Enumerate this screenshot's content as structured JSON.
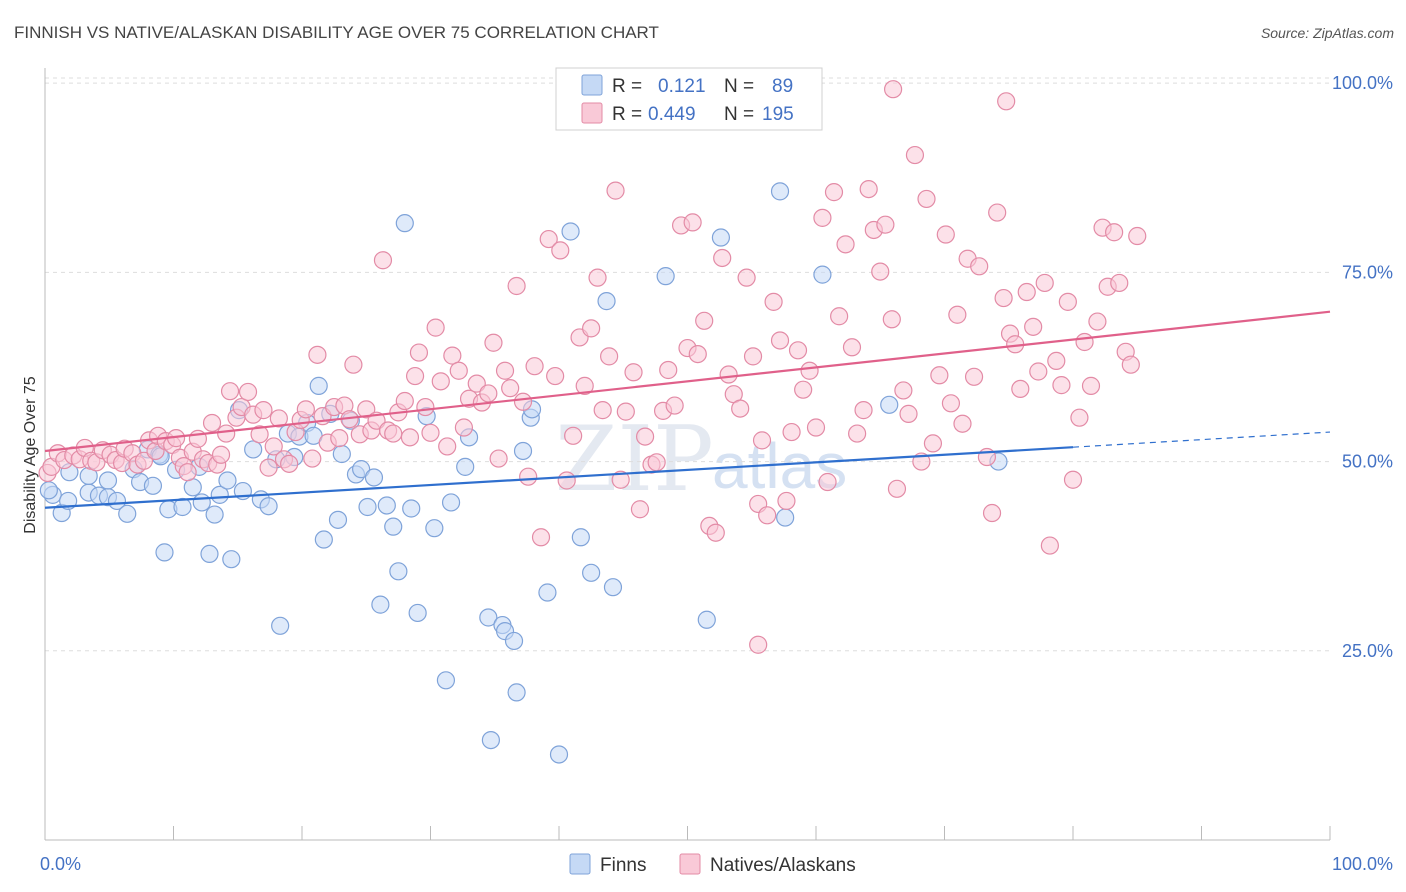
{
  "title": "FINNISH VS NATIVE/ALASKAN DISABILITY AGE OVER 75 CORRELATION CHART",
  "source": "Source: ZipAtlas.com",
  "watermark": {
    "zip": "ZIP",
    "atlas": "atlas"
  },
  "legend": {
    "r_label": "R =",
    "n_label": "N =",
    "rows": [
      {
        "r": "0.121",
        "n": "89",
        "fill": "#c5d9f5",
        "stroke": "#7fa3d9"
      },
      {
        "r": "0.449",
        "n": "195",
        "fill": "#f9c9d7",
        "stroke": "#e38ba6"
      }
    ]
  },
  "bottom_legend": [
    {
      "label": "Finns",
      "fill": "#c5d9f5",
      "stroke": "#7fa3d9"
    },
    {
      "label": "Natives/Alaskans",
      "fill": "#f9c9d7",
      "stroke": "#e38ba6"
    }
  ],
  "chart_data": {
    "type": "scatter",
    "title": "FINNISH VS NATIVE/ALASKAN DISABILITY AGE OVER 75 CORRELATION CHART",
    "xlabel": "",
    "ylabel": "Disability Age Over 75",
    "xlim": [
      0,
      100
    ],
    "ylim": [
      0,
      102
    ],
    "x_tick_labels": [
      "0.0%",
      "100.0%"
    ],
    "y_ticks": [
      25,
      50,
      75,
      100
    ],
    "y_tick_labels": [
      "25.0%",
      "50.0%",
      "75.0%",
      "100.0%"
    ],
    "grid": true,
    "series": [
      {
        "name": "Finns",
        "color": "#7fa3d9",
        "fill": "#c5d9f5",
        "trend_color": "#2f6fce",
        "trend": {
          "x0": 0,
          "y0": 43.9,
          "x1": 80,
          "y1": 51.9,
          "dash_to_x": 100,
          "dash_to_y": 53.9
        },
        "points": [
          [
            0.6,
            45.6
          ],
          [
            1.3,
            43.2
          ],
          [
            1.8,
            44.8
          ],
          [
            3.4,
            45.9
          ],
          [
            3.4,
            48.1
          ],
          [
            4.2,
            45.5
          ],
          [
            4.9,
            45.3
          ],
          [
            4.9,
            47.5
          ],
          [
            5.6,
            44.8
          ],
          [
            6.4,
            43.1
          ],
          [
            6.9,
            49.0
          ],
          [
            7.4,
            47.3
          ],
          [
            8.0,
            51.6
          ],
          [
            8.4,
            46.8
          ],
          [
            8.9,
            50.9
          ],
          [
            9.3,
            38.0
          ],
          [
            9.6,
            43.7
          ],
          [
            10.2,
            48.9
          ],
          [
            10.7,
            44.0
          ],
          [
            11.5,
            46.6
          ],
          [
            12.0,
            49.3
          ],
          [
            12.2,
            44.6
          ],
          [
            12.8,
            37.8
          ],
          [
            13.2,
            43.0
          ],
          [
            13.6,
            45.6
          ],
          [
            14.2,
            47.5
          ],
          [
            14.5,
            37.1
          ],
          [
            15.1,
            56.8
          ],
          [
            16.2,
            51.6
          ],
          [
            16.8,
            45.0
          ],
          [
            17.4,
            44.1
          ],
          [
            18.0,
            50.3
          ],
          [
            18.3,
            28.3
          ],
          [
            18.9,
            53.7
          ],
          [
            19.4,
            50.6
          ],
          [
            19.8,
            53.3
          ],
          [
            20.4,
            55.1
          ],
          [
            20.9,
            53.4
          ],
          [
            21.3,
            60.0
          ],
          [
            21.7,
            39.7
          ],
          [
            22.2,
            56.3
          ],
          [
            22.8,
            42.3
          ],
          [
            23.1,
            51.0
          ],
          [
            23.8,
            55.4
          ],
          [
            24.2,
            48.3
          ],
          [
            24.6,
            49.0
          ],
          [
            25.1,
            44.0
          ],
          [
            25.6,
            47.9
          ],
          [
            26.1,
            31.1
          ],
          [
            26.6,
            44.2
          ],
          [
            27.1,
            41.4
          ],
          [
            27.5,
            35.5
          ],
          [
            28.0,
            81.5
          ],
          [
            28.5,
            43.8
          ],
          [
            29.0,
            30.0
          ],
          [
            29.7,
            56.0
          ],
          [
            30.3,
            41.2
          ],
          [
            31.2,
            21.1
          ],
          [
            31.6,
            44.6
          ],
          [
            32.7,
            49.3
          ],
          [
            33.0,
            53.2
          ],
          [
            34.5,
            29.4
          ],
          [
            34.7,
            13.2
          ],
          [
            35.6,
            28.4
          ],
          [
            35.8,
            27.6
          ],
          [
            36.5,
            26.3
          ],
          [
            36.7,
            19.5
          ],
          [
            37.2,
            51.4
          ],
          [
            37.8,
            55.8
          ],
          [
            37.9,
            56.9
          ],
          [
            39.1,
            32.7
          ],
          [
            40.0,
            11.3
          ],
          [
            40.9,
            80.4
          ],
          [
            41.7,
            40.0
          ],
          [
            42.5,
            35.3
          ],
          [
            43.7,
            71.2
          ],
          [
            44.2,
            33.4
          ],
          [
            48.3,
            74.5
          ],
          [
            51.5,
            29.1
          ],
          [
            52.6,
            79.6
          ],
          [
            57.2,
            85.7
          ],
          [
            57.6,
            42.6
          ],
          [
            60.5,
            74.7
          ],
          [
            65.7,
            57.5
          ],
          [
            74.2,
            50.0
          ],
          [
            0.3,
            46.2
          ],
          [
            1.9,
            48.6
          ],
          [
            9.0,
            50.7
          ],
          [
            15.4,
            46.1
          ]
        ]
      },
      {
        "name": "Natives/Alaskans",
        "color": "#e38ba6",
        "fill": "#f9c9d7",
        "trend_color": "#e0608a",
        "trend": {
          "x0": 0,
          "y0": 51.4,
          "x1": 100,
          "y1": 69.8
        },
        "points": [
          [
            0.2,
            48.5
          ],
          [
            0.5,
            49.3
          ],
          [
            1.0,
            51.1
          ],
          [
            1.5,
            50.2
          ],
          [
            2.2,
            50.8
          ],
          [
            2.7,
            50.3
          ],
          [
            3.1,
            51.8
          ],
          [
            3.6,
            50.1
          ],
          [
            4.0,
            49.9
          ],
          [
            4.5,
            51.5
          ],
          [
            5.1,
            50.9
          ],
          [
            5.5,
            50.2
          ],
          [
            6.0,
            49.8
          ],
          [
            6.2,
            51.7
          ],
          [
            6.8,
            51.1
          ],
          [
            7.2,
            49.6
          ],
          [
            7.7,
            50.1
          ],
          [
            8.1,
            52.8
          ],
          [
            8.6,
            51.4
          ],
          [
            8.8,
            53.4
          ],
          [
            9.4,
            52.7
          ],
          [
            9.9,
            52.2
          ],
          [
            10.2,
            53.1
          ],
          [
            10.5,
            50.5
          ],
          [
            10.8,
            49.4
          ],
          [
            11.1,
            48.6
          ],
          [
            11.5,
            51.3
          ],
          [
            11.9,
            53.0
          ],
          [
            12.3,
            50.3
          ],
          [
            12.7,
            49.8
          ],
          [
            13.0,
            55.1
          ],
          [
            13.4,
            49.6
          ],
          [
            13.7,
            50.9
          ],
          [
            14.1,
            53.7
          ],
          [
            14.4,
            59.3
          ],
          [
            14.9,
            55.8
          ],
          [
            15.3,
            57.2
          ],
          [
            15.8,
            59.2
          ],
          [
            16.2,
            56.2
          ],
          [
            16.7,
            53.6
          ],
          [
            17.0,
            56.8
          ],
          [
            17.4,
            49.2
          ],
          [
            17.8,
            52.0
          ],
          [
            18.2,
            55.7
          ],
          [
            18.6,
            50.3
          ],
          [
            19.0,
            49.7
          ],
          [
            19.5,
            53.9
          ],
          [
            19.9,
            55.5
          ],
          [
            20.3,
            56.9
          ],
          [
            20.8,
            50.4
          ],
          [
            21.2,
            64.1
          ],
          [
            21.6,
            56.0
          ],
          [
            22.0,
            52.5
          ],
          [
            22.5,
            57.2
          ],
          [
            22.9,
            53.1
          ],
          [
            23.3,
            57.4
          ],
          [
            23.7,
            55.6
          ],
          [
            24.0,
            62.8
          ],
          [
            24.5,
            53.6
          ],
          [
            25.0,
            56.9
          ],
          [
            25.4,
            54.1
          ],
          [
            25.8,
            55.4
          ],
          [
            26.3,
            76.6
          ],
          [
            26.7,
            54.1
          ],
          [
            27.1,
            53.7
          ],
          [
            27.5,
            56.5
          ],
          [
            28.0,
            58.0
          ],
          [
            28.4,
            53.2
          ],
          [
            28.8,
            61.3
          ],
          [
            29.1,
            64.4
          ],
          [
            29.6,
            57.2
          ],
          [
            30.0,
            53.8
          ],
          [
            30.4,
            67.7
          ],
          [
            30.8,
            60.6
          ],
          [
            31.3,
            52.0
          ],
          [
            31.7,
            64.0
          ],
          [
            32.2,
            62.0
          ],
          [
            32.6,
            54.5
          ],
          [
            33.0,
            58.3
          ],
          [
            33.6,
            60.3
          ],
          [
            34.0,
            57.8
          ],
          [
            34.5,
            59.0
          ],
          [
            34.9,
            65.7
          ],
          [
            35.3,
            50.4
          ],
          [
            35.8,
            62.0
          ],
          [
            36.2,
            59.7
          ],
          [
            36.7,
            73.2
          ],
          [
            37.2,
            57.9
          ],
          [
            37.6,
            48.0
          ],
          [
            38.1,
            62.6
          ],
          [
            38.6,
            40.0
          ],
          [
            39.2,
            79.4
          ],
          [
            39.7,
            61.3
          ],
          [
            40.1,
            77.9
          ],
          [
            40.6,
            47.5
          ],
          [
            41.1,
            53.4
          ],
          [
            41.6,
            66.4
          ],
          [
            42.0,
            60.0
          ],
          [
            42.5,
            67.6
          ],
          [
            43.0,
            74.3
          ],
          [
            43.4,
            56.8
          ],
          [
            43.9,
            63.9
          ],
          [
            44.4,
            85.8
          ],
          [
            44.8,
            47.6
          ],
          [
            45.2,
            56.6
          ],
          [
            45.8,
            61.8
          ],
          [
            46.3,
            43.7
          ],
          [
            46.7,
            53.3
          ],
          [
            47.2,
            49.6
          ],
          [
            47.6,
            49.9
          ],
          [
            48.1,
            56.7
          ],
          [
            48.5,
            62.1
          ],
          [
            49.0,
            57.4
          ],
          [
            49.5,
            81.2
          ],
          [
            50.0,
            65.0
          ],
          [
            50.4,
            81.6
          ],
          [
            50.8,
            64.2
          ],
          [
            51.3,
            68.6
          ],
          [
            51.7,
            41.5
          ],
          [
            52.2,
            40.6
          ],
          [
            52.7,
            76.9
          ],
          [
            53.2,
            61.5
          ],
          [
            53.6,
            58.9
          ],
          [
            54.1,
            57.0
          ],
          [
            54.6,
            74.3
          ],
          [
            55.1,
            63.9
          ],
          [
            55.5,
            44.4
          ],
          [
            55.8,
            52.8
          ],
          [
            56.2,
            42.9
          ],
          [
            56.7,
            71.1
          ],
          [
            57.2,
            66.0
          ],
          [
            57.7,
            44.8
          ],
          [
            58.1,
            53.9
          ],
          [
            58.6,
            64.7
          ],
          [
            59.0,
            59.5
          ],
          [
            59.5,
            62.0
          ],
          [
            60.0,
            54.5
          ],
          [
            60.5,
            82.2
          ],
          [
            60.9,
            47.3
          ],
          [
            61.4,
            85.6
          ],
          [
            61.8,
            69.2
          ],
          [
            62.3,
            78.7
          ],
          [
            62.8,
            65.1
          ],
          [
            63.2,
            53.7
          ],
          [
            63.7,
            56.8
          ],
          [
            64.1,
            86.0
          ],
          [
            64.5,
            80.6
          ],
          [
            65.0,
            75.1
          ],
          [
            65.4,
            81.3
          ],
          [
            65.9,
            68.8
          ],
          [
            66.3,
            46.4
          ],
          [
            66.8,
            59.4
          ],
          [
            67.2,
            56.3
          ],
          [
            67.7,
            90.5
          ],
          [
            68.2,
            50.0
          ],
          [
            68.6,
            84.7
          ],
          [
            69.1,
            52.4
          ],
          [
            69.6,
            61.4
          ],
          [
            70.1,
            80.0
          ],
          [
            70.5,
            57.7
          ],
          [
            71.0,
            69.4
          ],
          [
            71.4,
            55.0
          ],
          [
            71.8,
            76.8
          ],
          [
            72.3,
            61.2
          ],
          [
            72.7,
            75.8
          ],
          [
            73.3,
            50.6
          ],
          [
            73.7,
            43.2
          ],
          [
            74.1,
            82.9
          ],
          [
            74.6,
            71.6
          ],
          [
            75.1,
            66.9
          ],
          [
            75.5,
            65.5
          ],
          [
            75.9,
            59.6
          ],
          [
            76.4,
            72.4
          ],
          [
            76.9,
            67.8
          ],
          [
            77.3,
            61.9
          ],
          [
            77.8,
            73.6
          ],
          [
            78.2,
            38.9
          ],
          [
            78.7,
            63.3
          ],
          [
            79.1,
            60.1
          ],
          [
            79.6,
            71.1
          ],
          [
            80.0,
            47.6
          ],
          [
            80.5,
            55.8
          ],
          [
            80.9,
            65.8
          ],
          [
            81.4,
            60.0
          ],
          [
            81.9,
            68.5
          ],
          [
            82.3,
            80.9
          ],
          [
            82.7,
            73.1
          ],
          [
            83.2,
            80.3
          ],
          [
            83.6,
            73.6
          ],
          [
            84.1,
            64.5
          ],
          [
            84.5,
            62.8
          ],
          [
            85.0,
            79.8
          ],
          [
            66.0,
            99.2
          ],
          [
            74.8,
            97.6
          ],
          [
            55.5,
            25.8
          ]
        ]
      }
    ]
  }
}
